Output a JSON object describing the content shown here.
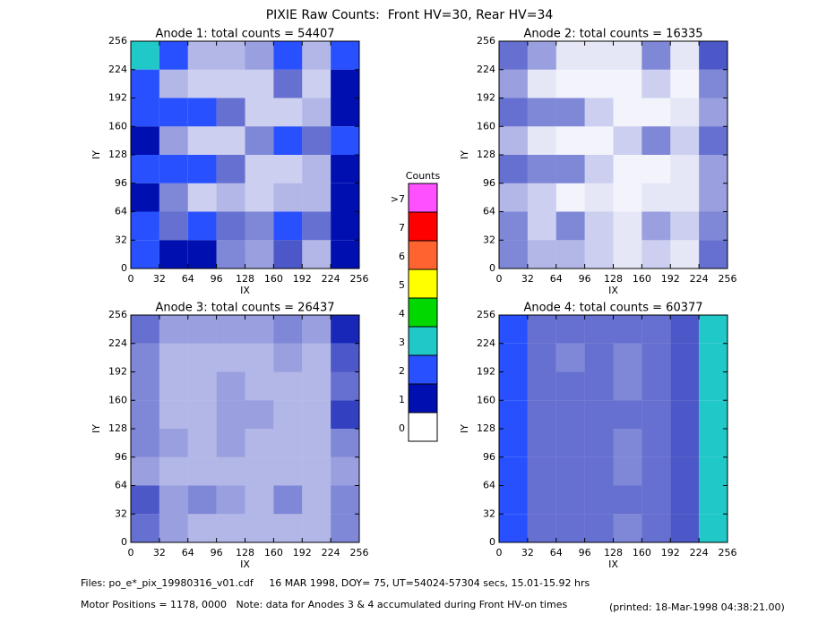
{
  "title": "PIXIE Raw Counts:  Front HV=30, Rear HV=34",
  "chart_data": [
    {
      "type": "heatmap",
      "title": "Anode 1: total counts = 54407",
      "xlabel": "IX",
      "ylabel": "IY",
      "xlim": [
        0,
        256
      ],
      "ylim": [
        0,
        256
      ],
      "xticks": [
        0,
        32,
        64,
        96,
        128,
        160,
        192,
        224,
        256
      ],
      "yticks": [
        0,
        32,
        64,
        96,
        128,
        160,
        192,
        224,
        256
      ],
      "values": [
        [
          2.5,
          1.5,
          0.3,
          0.3,
          0.4,
          1.5,
          0.3,
          1.5
        ],
        [
          1.5,
          0.3,
          0.2,
          0.2,
          0.2,
          0.6,
          0.2,
          1.2
        ],
        [
          2,
          1.5,
          1.5,
          0.6,
          0.2,
          0.2,
          0.3,
          1.2
        ],
        [
          1.2,
          0.4,
          0.2,
          0.2,
          0.5,
          1.5,
          0.6,
          1.8
        ],
        [
          2,
          1.5,
          1.5,
          0.6,
          0.2,
          0.2,
          0.3,
          1.2
        ],
        [
          1,
          0.5,
          0.2,
          0.3,
          0.2,
          0.3,
          0.3,
          1
        ],
        [
          1.5,
          0.6,
          1.5,
          0.6,
          0.5,
          1.5,
          0.6,
          1.2
        ],
        [
          1.5,
          1,
          1,
          0.5,
          0.4,
          0.7,
          0.3,
          1.2
        ]
      ]
    },
    {
      "type": "heatmap",
      "title": "Anode 2: total counts = 16335",
      "xlabel": "IX",
      "ylabel": "IY",
      "xlim": [
        0,
        256
      ],
      "ylim": [
        0,
        256
      ],
      "xticks": [
        0,
        32,
        64,
        96,
        128,
        160,
        192,
        224,
        256
      ],
      "yticks": [
        0,
        32,
        64,
        96,
        128,
        160,
        192,
        224,
        256
      ],
      "values": [
        [
          0.6,
          0.4,
          0.1,
          0.1,
          0.1,
          0.5,
          0.1,
          0.7
        ],
        [
          0.4,
          0.1,
          0.05,
          0.05,
          0.05,
          0.2,
          0.05,
          0.5
        ],
        [
          0.6,
          0.5,
          0.5,
          0.2,
          0.05,
          0.05,
          0.1,
          0.4
        ],
        [
          0.3,
          0.1,
          0.05,
          0.05,
          0.2,
          0.5,
          0.2,
          0.6
        ],
        [
          0.6,
          0.5,
          0.5,
          0.2,
          0.05,
          0.05,
          0.1,
          0.4
        ],
        [
          0.3,
          0.2,
          0.05,
          0.1,
          0.05,
          0.1,
          0.1,
          0.4
        ],
        [
          0.5,
          0.2,
          0.5,
          0.2,
          0.1,
          0.4,
          0.2,
          0.5
        ],
        [
          0.5,
          0.3,
          0.3,
          0.2,
          0.1,
          0.2,
          0.1,
          0.6
        ]
      ]
    },
    {
      "type": "heatmap",
      "title": "Anode 3: total counts = 26437",
      "xlabel": "IX",
      "ylabel": "IY",
      "xlim": [
        0,
        256
      ],
      "ylim": [
        0,
        256
      ],
      "xticks": [
        0,
        32,
        64,
        96,
        128,
        160,
        192,
        224,
        256
      ],
      "yticks": [
        0,
        32,
        64,
        96,
        128,
        160,
        192,
        224,
        256
      ],
      "values": [
        [
          0.6,
          0.4,
          0.4,
          0.4,
          0.4,
          0.5,
          0.4,
          0.9
        ],
        [
          0.5,
          0.3,
          0.3,
          0.3,
          0.3,
          0.4,
          0.3,
          0.7
        ],
        [
          0.5,
          0.3,
          0.3,
          0.4,
          0.3,
          0.3,
          0.3,
          0.6
        ],
        [
          0.5,
          0.3,
          0.3,
          0.4,
          0.4,
          0.3,
          0.3,
          0.8
        ],
        [
          0.5,
          0.4,
          0.3,
          0.4,
          0.3,
          0.3,
          0.3,
          0.5
        ],
        [
          0.4,
          0.3,
          0.3,
          0.3,
          0.3,
          0.3,
          0.3,
          0.4
        ],
        [
          0.7,
          0.4,
          0.5,
          0.4,
          0.3,
          0.5,
          0.3,
          0.5
        ],
        [
          0.6,
          0.4,
          0.3,
          0.3,
          0.3,
          0.3,
          0.3,
          0.5
        ]
      ]
    },
    {
      "type": "heatmap",
      "title": "Anode 4: total counts = 60377",
      "xlabel": "IX",
      "ylabel": "IY",
      "xlim": [
        0,
        256
      ],
      "ylim": [
        0,
        256
      ],
      "xticks": [
        0,
        32,
        64,
        96,
        128,
        160,
        192,
        224,
        256
      ],
      "yticks": [
        0,
        32,
        64,
        96,
        128,
        160,
        192,
        224,
        256
      ],
      "values": [
        [
          1.8,
          0.6,
          0.6,
          0.6,
          0.6,
          0.6,
          0.7,
          2.5
        ],
        [
          1.8,
          0.6,
          0.5,
          0.6,
          0.5,
          0.6,
          0.7,
          2.5
        ],
        [
          1.8,
          0.6,
          0.6,
          0.6,
          0.5,
          0.6,
          0.7,
          2.5
        ],
        [
          1.8,
          0.6,
          0.6,
          0.6,
          0.6,
          0.6,
          0.7,
          2.5
        ],
        [
          2,
          0.6,
          0.6,
          0.6,
          0.5,
          0.6,
          0.7,
          2.5
        ],
        [
          1.8,
          0.6,
          0.6,
          0.6,
          0.5,
          0.6,
          0.7,
          2.5
        ],
        [
          1.8,
          0.6,
          0.6,
          0.6,
          0.6,
          0.6,
          0.7,
          2.5
        ],
        [
          1.8,
          0.6,
          0.6,
          0.6,
          0.5,
          0.6,
          0.7,
          2.5
        ]
      ]
    }
  ],
  "colorbar": {
    "title": "Counts",
    "levels": [
      0,
      1,
      2,
      3,
      4,
      5,
      6,
      7,
      {
        "value": 8,
        "label": ">7"
      }
    ],
    "colors": [
      "#ffffff",
      "#0010b0",
      "#2850ff",
      "#20c8c8",
      "#00d800",
      "#ffff00",
      "#ff6430",
      "#ff0000",
      "#ff50ff"
    ]
  },
  "footer": {
    "files": "Files: po_e*_pix_19980316_v01.cdf     16 MAR 1998, DOY= 75, UT=54024-57304 secs, 15.01-15.92 hrs",
    "motor": "Motor Positions = 1178, 0000   Note: data for Anodes 3 & 4 accumulated during Front HV-on times",
    "printed": "(printed: 18-Mar-1998 04:38:21.00)"
  }
}
